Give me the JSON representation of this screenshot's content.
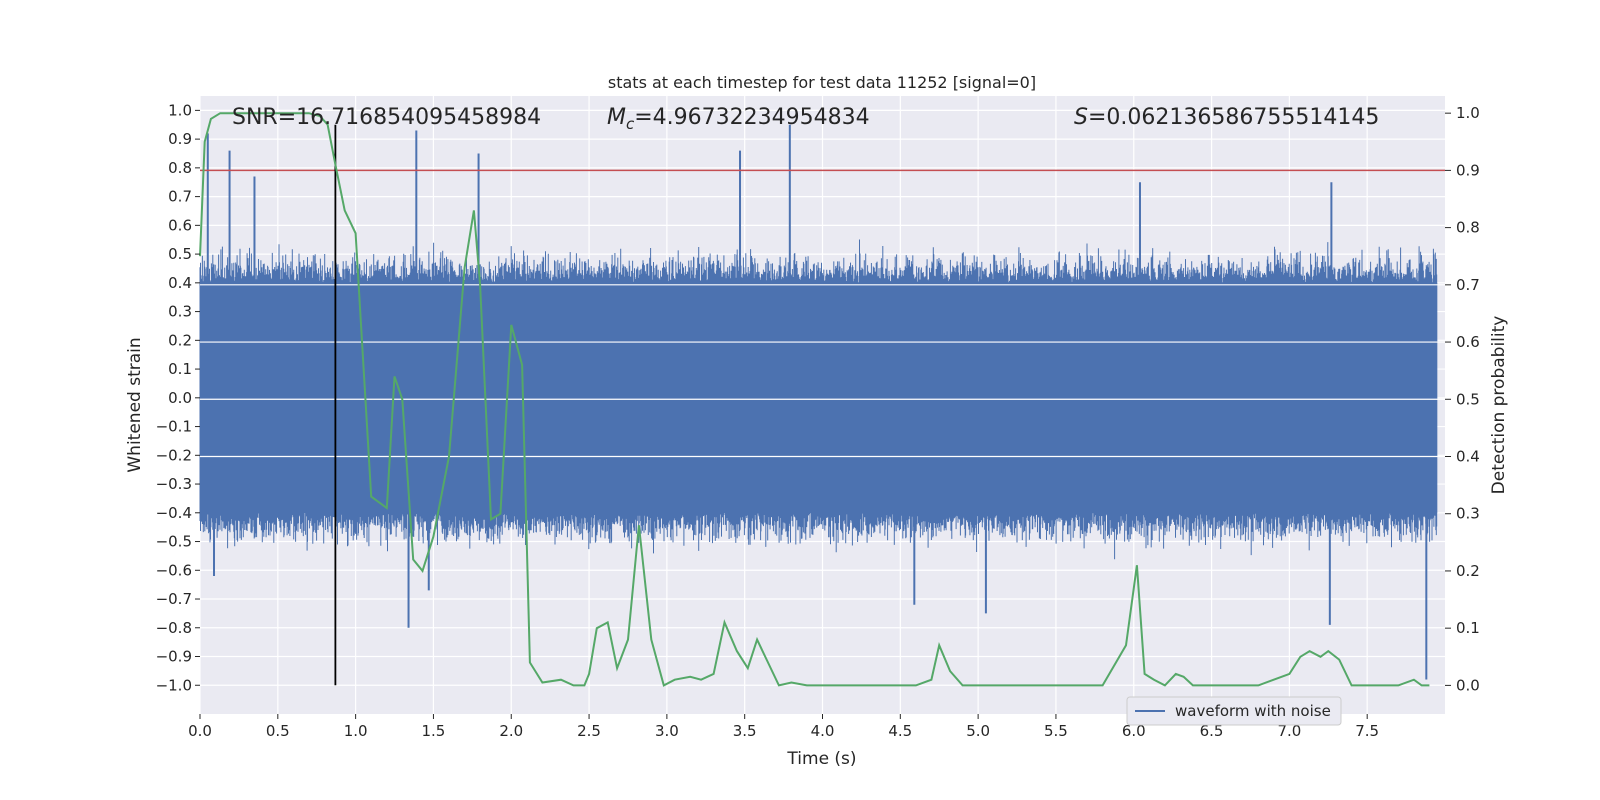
{
  "chart_data": {
    "type": "line",
    "title": "stats at each timestep for test data 11252 [signal=0]",
    "xlabel": "Time (s)",
    "ylabel_left": "Whitened strain",
    "ylabel_right": "Detection probability",
    "xlim": [
      0.0,
      8.0
    ],
    "ylim_left": [
      -1.1,
      1.05
    ],
    "ylim_right": [
      -0.05,
      1.03
    ],
    "x_ticks": [
      0.0,
      0.5,
      1.0,
      1.5,
      2.0,
      2.5,
      3.0,
      3.5,
      4.0,
      4.5,
      5.0,
      5.5,
      6.0,
      6.5,
      7.0,
      7.5
    ],
    "x_tick_labels": [
      "0.0",
      "0.5",
      "1.0",
      "1.5",
      "2.0",
      "2.5",
      "3.0",
      "3.5",
      "4.0",
      "4.5",
      "5.0",
      "5.5",
      "6.0",
      "6.5",
      "7.0",
      "7.5"
    ],
    "y_left_ticks": [
      1.0,
      0.9,
      0.8,
      0.7,
      0.6,
      0.5,
      0.4,
      0.3,
      0.2,
      0.1,
      0.0,
      -0.1,
      -0.2,
      -0.3,
      -0.4,
      -0.5,
      -0.6,
      -0.7,
      -0.8,
      -0.9,
      -1.0
    ],
    "y_left_tick_labels": [
      "1.0",
      "0.9",
      "0.8",
      "0.7",
      "0.6",
      "0.5",
      "0.4",
      "0.3",
      "0.2",
      "0.1",
      "0.0",
      "−0.1",
      "−0.2",
      "−0.3",
      "−0.4",
      "−0.5",
      "−0.6",
      "−0.7",
      "−0.8",
      "−0.9",
      "−1.0"
    ],
    "y_right_ticks": [
      1.0,
      0.9,
      0.8,
      0.7,
      0.6,
      0.5,
      0.4,
      0.3,
      0.2,
      0.1,
      0.0
    ],
    "y_right_tick_labels": [
      "1.0",
      "0.9",
      "0.8",
      "0.7",
      "0.6",
      "0.5",
      "0.4",
      "0.3",
      "0.2",
      "0.1",
      "0.0"
    ],
    "grid": true,
    "legend": {
      "placement": "lower-right",
      "entries": [
        "waveform with noise"
      ]
    },
    "annotations": {
      "snr": "SNR=16.716854095458984",
      "mc_symbol": "M",
      "mc_sub": "c",
      "mc_value": "=4.96732234954834",
      "s_symbol": "S",
      "s_value": "=0.062136586755514145"
    },
    "threshold_line": {
      "axis": "right",
      "y": 0.9
    },
    "vertical_line": {
      "x": 0.87,
      "y_range_left": [
        -1.0,
        0.95
      ]
    },
    "waveform": {
      "name": "waveform with noise",
      "band_left": [
        -0.4,
        0.4
      ],
      "peaks": [
        {
          "x": 0.05,
          "y": 0.92
        },
        {
          "x": 0.19,
          "y": 0.86
        },
        {
          "x": 0.35,
          "y": 0.77
        },
        {
          "x": 1.39,
          "y": 0.93
        },
        {
          "x": 1.79,
          "y": 0.85
        },
        {
          "x": 3.47,
          "y": 0.86
        },
        {
          "x": 3.79,
          "y": 0.95
        },
        {
          "x": 6.04,
          "y": 0.75
        },
        {
          "x": 7.27,
          "y": 0.75
        }
      ],
      "troughs": [
        {
          "x": 0.09,
          "y": -0.62
        },
        {
          "x": 1.34,
          "y": -0.8
        },
        {
          "x": 1.47,
          "y": -0.67
        },
        {
          "x": 4.59,
          "y": -0.72
        },
        {
          "x": 5.05,
          "y": -0.75
        },
        {
          "x": 7.26,
          "y": -0.79
        },
        {
          "x": 7.88,
          "y": -0.98
        }
      ]
    },
    "probability_series": {
      "axis": "right",
      "x": [
        0.0,
        0.03,
        0.07,
        0.13,
        0.2,
        0.3,
        0.4,
        0.5,
        0.6,
        0.7,
        0.77,
        0.82,
        0.87,
        0.93,
        1.0,
        1.1,
        1.2,
        1.25,
        1.3,
        1.37,
        1.43,
        1.5,
        1.6,
        1.7,
        1.76,
        1.8,
        1.87,
        1.93,
        2.0,
        2.07,
        2.12,
        2.2,
        2.32,
        2.4,
        2.47,
        2.5,
        2.55,
        2.62,
        2.68,
        2.75,
        2.82,
        2.9,
        2.98,
        3.05,
        3.15,
        3.22,
        3.3,
        3.37,
        3.45,
        3.52,
        3.58,
        3.65,
        3.72,
        3.8,
        3.9,
        4.0,
        4.3,
        4.6,
        4.7,
        4.75,
        4.82,
        4.9,
        5.0,
        5.2,
        5.5,
        5.8,
        5.95,
        6.02,
        6.07,
        6.13,
        6.2,
        6.27,
        6.32,
        6.38,
        6.45,
        6.6,
        6.8,
        7.0,
        7.07,
        7.13,
        7.2,
        7.25,
        7.32,
        7.4,
        7.5,
        7.7,
        7.8,
        7.85,
        7.9
      ],
      "values": [
        0.75,
        0.95,
        0.99,
        1.0,
        1.0,
        1.0,
        1.0,
        1.0,
        1.0,
        1.0,
        0.995,
        0.98,
        0.91,
        0.83,
        0.79,
        0.33,
        0.31,
        0.54,
        0.5,
        0.22,
        0.2,
        0.26,
        0.4,
        0.73,
        0.83,
        0.7,
        0.29,
        0.3,
        0.63,
        0.56,
        0.04,
        0.005,
        0.01,
        0.0,
        0.0,
        0.02,
        0.1,
        0.11,
        0.03,
        0.08,
        0.28,
        0.08,
        0.0,
        0.01,
        0.015,
        0.01,
        0.02,
        0.11,
        0.06,
        0.03,
        0.08,
        0.04,
        0.0,
        0.005,
        0.0,
        0.0,
        0.0,
        0.0,
        0.01,
        0.07,
        0.025,
        0.0,
        0.0,
        0.0,
        0.0,
        0.0,
        0.07,
        0.21,
        0.02,
        0.01,
        0.0,
        0.02,
        0.015,
        0.0,
        0.0,
        0.0,
        0.0,
        0.02,
        0.05,
        0.06,
        0.05,
        0.06,
        0.045,
        0.0,
        0.0,
        0.0,
        0.01,
        0.0,
        0.0
      ]
    },
    "colors": {
      "waveform": "#4c72b0",
      "probability": "#55a868",
      "threshold": "#c44e52",
      "vline": "#000000",
      "plot_bg": "#eaeaf2",
      "grid": "#ffffff"
    }
  }
}
